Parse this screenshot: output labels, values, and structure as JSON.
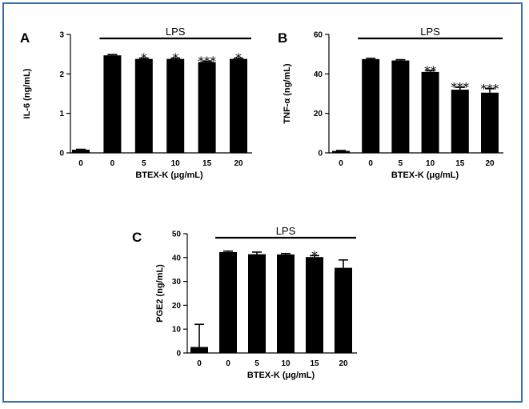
{
  "colors": {
    "bar": "#000000",
    "frame": "#3a6ea5",
    "background": "#ffffff"
  },
  "chart_data": [
    {
      "panel": "A",
      "type": "bar",
      "ylabel": "IL-6 (ng/mL)",
      "xlabel": "BTEX-K (μg/mL)",
      "bracket_label": "LPS",
      "bracket_covers": [
        1,
        5
      ],
      "ylim": [
        0,
        3
      ],
      "yticks": [
        0,
        1,
        2,
        3
      ],
      "categories": [
        "0",
        "0",
        "5",
        "10",
        "15",
        "20"
      ],
      "values": [
        0.08,
        2.47,
        2.38,
        2.38,
        2.3,
        2.38
      ],
      "errors": [
        0.01,
        0.02,
        0.02,
        0.02,
        0.02,
        0.02
      ],
      "significance": [
        "",
        "",
        "*",
        "*",
        "***",
        "*"
      ]
    },
    {
      "panel": "B",
      "type": "bar",
      "ylabel": "TNF-α (ng/mL)",
      "xlabel": "BTEX-K (μg/mL)",
      "bracket_label": "LPS",
      "bracket_covers": [
        1,
        5
      ],
      "ylim": [
        0,
        60
      ],
      "yticks": [
        0,
        20,
        40,
        60
      ],
      "categories": [
        "0",
        "0",
        "5",
        "10",
        "15",
        "20"
      ],
      "values": [
        1,
        47.5,
        46.8,
        41,
        32,
        30.5
      ],
      "errors": [
        0.2,
        0.4,
        0.4,
        0.6,
        1.2,
        2
      ],
      "significance": [
        "",
        "",
        "",
        "**",
        "***",
        "***"
      ]
    },
    {
      "panel": "C",
      "type": "bar",
      "ylabel": "PGE2 (ng/mL)",
      "xlabel": "BTEX-K (μg/mL)",
      "bracket_label": "LPS",
      "bracket_covers": [
        1,
        5
      ],
      "ylim": [
        0,
        50
      ],
      "yticks": [
        0,
        10,
        20,
        30,
        40,
        50
      ],
      "categories": [
        "0",
        "0",
        "5",
        "10",
        "15",
        "20"
      ],
      "values": [
        2.5,
        42.3,
        41.4,
        41.3,
        40.2,
        35.7
      ],
      "errors": [
        9.5,
        0.4,
        0.9,
        0.4,
        0.6,
        3.3
      ],
      "significance": [
        "",
        "",
        "",
        "",
        "*",
        ""
      ]
    }
  ]
}
